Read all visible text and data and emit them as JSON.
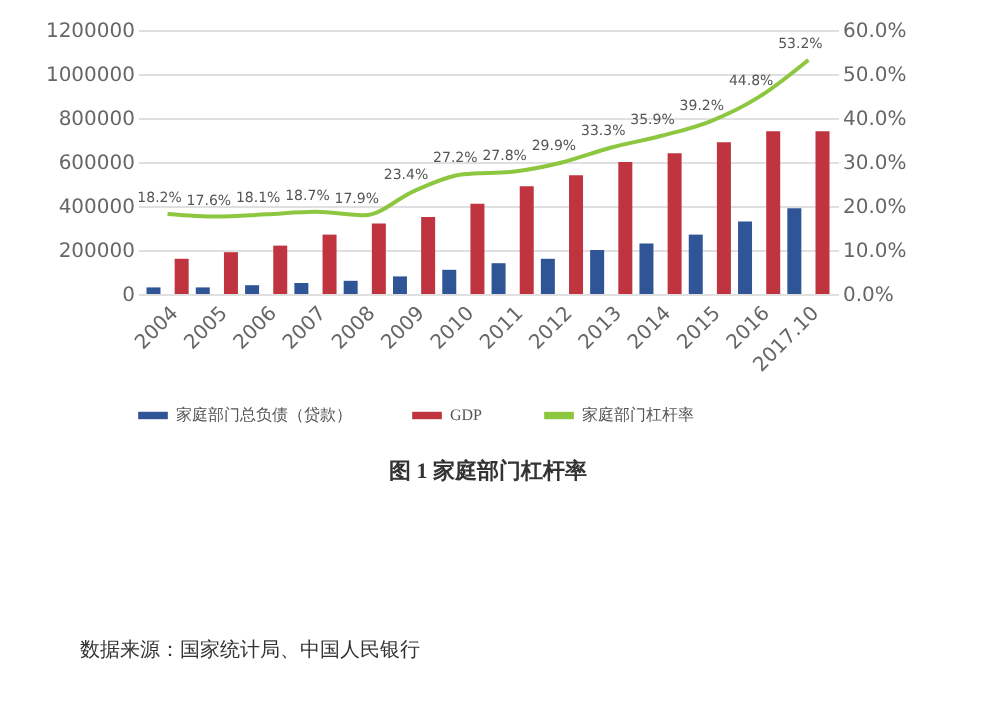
{
  "chart_data": {
    "type": "bar",
    "title": "图 1 家庭部门杠杆率",
    "annotations": [
      "数据来源：国家统计局、中国人民银行"
    ],
    "categories": [
      "2004",
      "2005",
      "2006",
      "2007",
      "2008",
      "2009",
      "2010",
      "2011",
      "2012",
      "2013",
      "2014",
      "2015",
      "2016",
      "2017.10"
    ],
    "series": [
      {
        "name": "家庭部门总负债（贷款）",
        "color": "#2f5597",
        "values": [
          30000,
          30000,
          40000,
          50000,
          60000,
          80000,
          110000,
          140000,
          160000,
          200000,
          230000,
          270000,
          330000,
          390000
        ]
      },
      {
        "name": "GDP",
        "color": "#c0343f",
        "values": [
          160000,
          190000,
          220000,
          270000,
          320000,
          350000,
          410000,
          490000,
          540000,
          600000,
          640000,
          690000,
          740000,
          740000
        ]
      },
      {
        "name": "家庭部门杠杆率",
        "color": "#8dc63f",
        "type": "line",
        "axis": "y2",
        "values": [
          18.2,
          17.6,
          18.1,
          18.7,
          17.9,
          23.4,
          27.2,
          27.8,
          29.9,
          33.3,
          35.9,
          39.2,
          44.8,
          53.2
        ],
        "value_labels": [
          "18.2%",
          "17.6%",
          "18.1%",
          "18.7%",
          "17.9%",
          "23.4%",
          "27.2%",
          "27.8%",
          "29.9%",
          "33.3%",
          "35.9%",
          "39.2%",
          "44.8%",
          "53.2%"
        ]
      }
    ],
    "ylim": [
      0,
      1200000
    ],
    "yticks": [
      0,
      200000,
      400000,
      600000,
      800000,
      1000000,
      1200000
    ],
    "y2lim": [
      0,
      60
    ],
    "y2ticks": [
      {
        "value": 0,
        "label": "0.0%"
      },
      {
        "value": 10,
        "label": "10.0%"
      },
      {
        "value": 20,
        "label": "20.0%"
      },
      {
        "value": 30,
        "label": "30.0%"
      },
      {
        "value": 40,
        "label": "40.0%"
      },
      {
        "value": 50,
        "label": "50.0%"
      },
      {
        "value": 60,
        "label": "60.0%"
      }
    ],
    "grid": "y",
    "legend": "bottom"
  }
}
